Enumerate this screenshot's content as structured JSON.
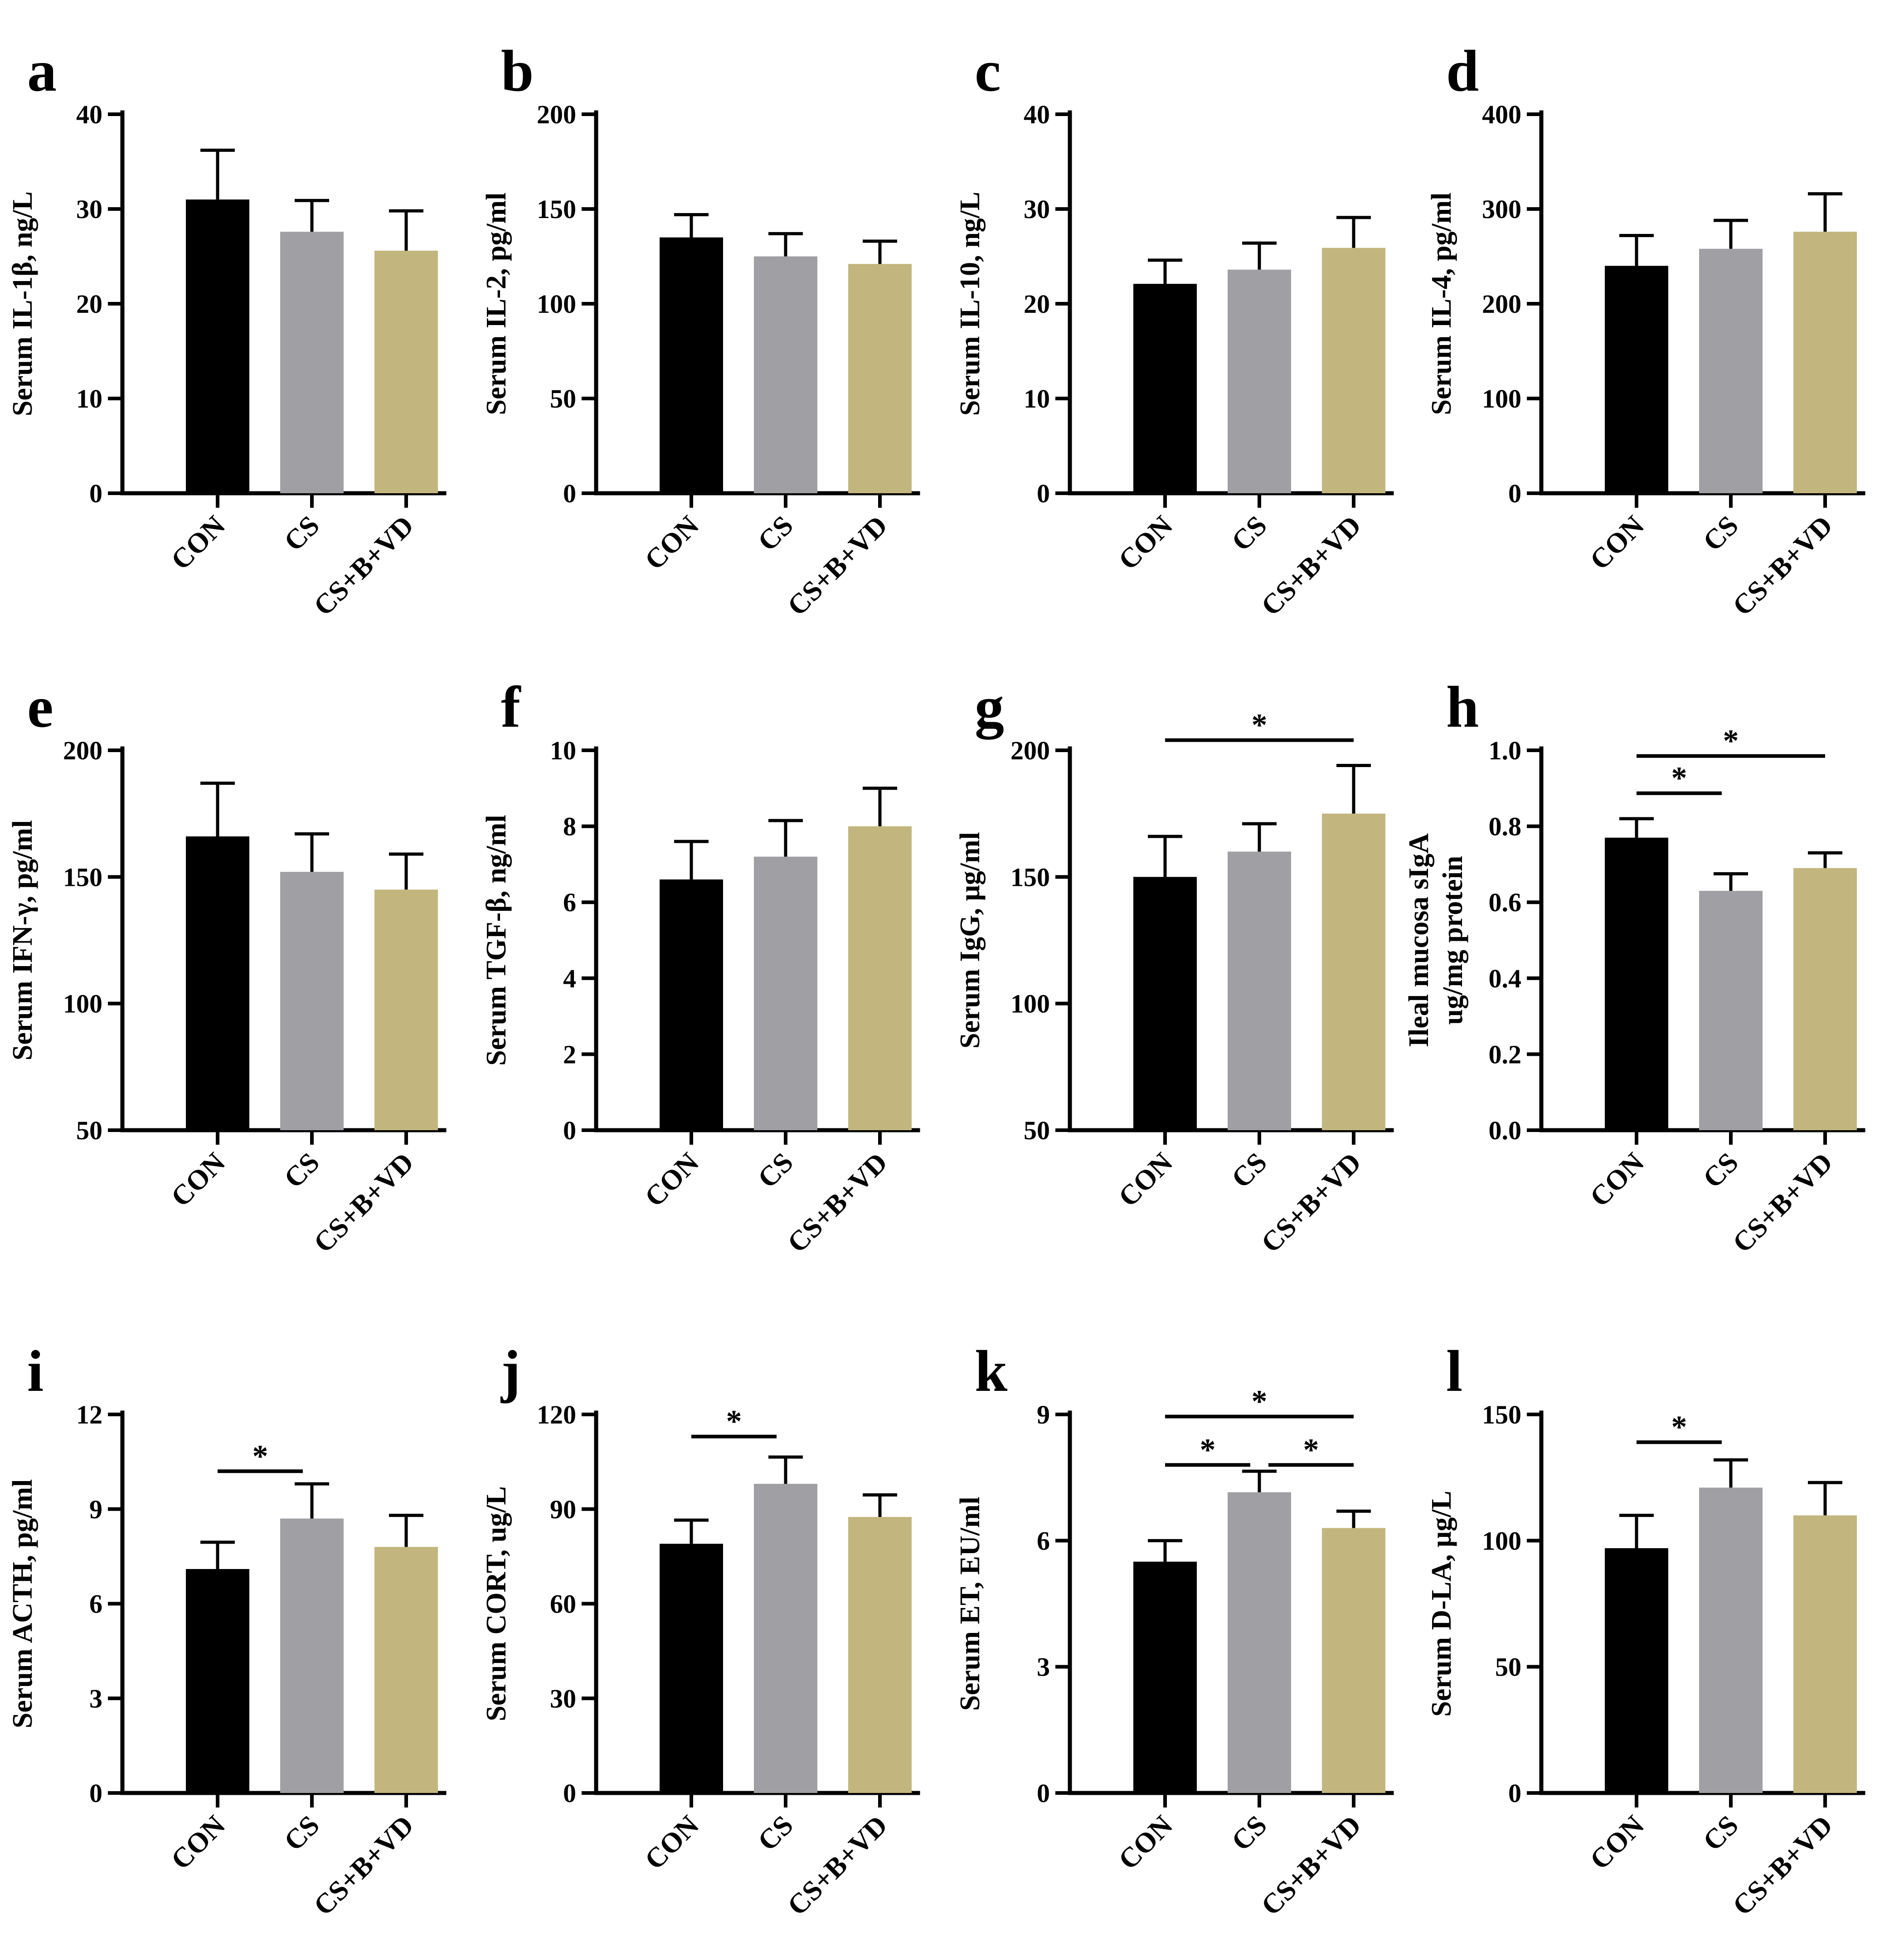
{
  "colors": {
    "CON": "#000000",
    "CS": "#a09fa4",
    "CS+B+VD": "#c2b67e"
  },
  "chart_data": [
    {
      "letter": "a",
      "type": "bar",
      "ylabel": "Serum IL-1β, ng/L",
      "ylabel2": "",
      "categories": [
        "CON",
        "CS",
        "CS+B+VD"
      ],
      "values": [
        31.0,
        27.6,
        25.6
      ],
      "errors": [
        5.2,
        3.3,
        4.2
      ],
      "ylim": [
        0,
        40
      ],
      "yticks": [
        "0",
        "10",
        "20",
        "30",
        "40"
      ],
      "sig": []
    },
    {
      "letter": "b",
      "type": "bar",
      "ylabel": "Serum IL-2, pg/ml",
      "ylabel2": "",
      "categories": [
        "CON",
        "CS",
        "CS+B+VD"
      ],
      "values": [
        135,
        125,
        121
      ],
      "errors": [
        12,
        12,
        12
      ],
      "ylim": [
        0,
        200
      ],
      "yticks": [
        "0",
        "50",
        "100",
        "150",
        "200"
      ],
      "sig": []
    },
    {
      "letter": "c",
      "type": "bar",
      "ylabel": "Serum IL-10, ng/L",
      "ylabel2": "",
      "categories": [
        "CON",
        "CS",
        "CS+B+VD"
      ],
      "values": [
        22.1,
        23.6,
        25.9
      ],
      "errors": [
        2.5,
        2.8,
        3.2
      ],
      "ylim": [
        0,
        40
      ],
      "yticks": [
        "0",
        "10",
        "20",
        "30",
        "40"
      ],
      "sig": []
    },
    {
      "letter": "d",
      "type": "bar",
      "ylabel": "Serum IL-4, pg/ml",
      "ylabel2": "",
      "categories": [
        "CON",
        "CS",
        "CS+B+VD"
      ],
      "values": [
        240,
        258,
        276
      ],
      "errors": [
        32,
        30,
        40
      ],
      "ylim": [
        0,
        400
      ],
      "yticks": [
        "0",
        "100",
        "200",
        "300",
        "400"
      ],
      "sig": []
    },
    {
      "letter": "e",
      "type": "bar",
      "ylabel": "Serum IFN-γ, pg/ml",
      "ylabel2": "",
      "categories": [
        "CON",
        "CS",
        "CS+B+VD"
      ],
      "values": [
        166,
        152,
        145
      ],
      "errors": [
        21,
        15,
        14
      ],
      "ylim": [
        50,
        200
      ],
      "yticks": [
        "50",
        "100",
        "150",
        "200"
      ],
      "sig": []
    },
    {
      "letter": "f",
      "type": "bar",
      "ylabel": "Serum TGF-β, ng/ml",
      "ylabel2": "",
      "categories": [
        "CON",
        "CS",
        "CS+B+VD"
      ],
      "values": [
        6.6,
        7.2,
        8.0
      ],
      "errors": [
        1.0,
        0.95,
        1.0
      ],
      "ylim": [
        0,
        10
      ],
      "yticks": [
        "0",
        "2",
        "4",
        "6",
        "8",
        "10"
      ],
      "sig": []
    },
    {
      "letter": "g",
      "type": "bar",
      "ylabel": "Serum IgG, μg/ml",
      "ylabel2": "",
      "categories": [
        "CON",
        "CS",
        "CS+B+VD"
      ],
      "values": [
        150,
        160,
        175
      ],
      "errors": [
        16,
        11,
        19
      ],
      "ylim": [
        50,
        200
      ],
      "yticks": [
        "50",
        "100",
        "150",
        "200"
      ],
      "sig": [
        {
          "from": 0,
          "to": 2,
          "y": 204,
          "label": "*"
        }
      ]
    },
    {
      "letter": "h",
      "type": "bar",
      "ylabel": "Ileal mucosa sIgA",
      "ylabel2": "ug/mg protein",
      "categories": [
        "CON",
        "CS",
        "CS+B+VD"
      ],
      "values": [
        0.77,
        0.63,
        0.69
      ],
      "errors": [
        0.05,
        0.045,
        0.04
      ],
      "ylim": [
        0,
        1.0
      ],
      "yticks": [
        "0.0",
        "0.2",
        "0.4",
        "0.6",
        "0.8",
        "1.0"
      ],
      "sig": [
        {
          "from": 0,
          "to": 1,
          "y": 0.887,
          "label": "*"
        },
        {
          "from": 0,
          "to": 2,
          "y": 0.985,
          "label": "*"
        }
      ]
    },
    {
      "letter": "i",
      "type": "bar",
      "ylabel": "Serum ACTH, pg/ml",
      "ylabel2": "",
      "categories": [
        "CON",
        "CS",
        "CS+B+VD"
      ],
      "values": [
        7.1,
        8.7,
        7.8
      ],
      "errors": [
        0.85,
        1.1,
        1.0
      ],
      "ylim": [
        0,
        12
      ],
      "yticks": [
        "0",
        "3",
        "6",
        "9",
        "12"
      ],
      "sig": [
        {
          "from": 0,
          "to": 1,
          "y": 10.2,
          "label": "*"
        }
      ]
    },
    {
      "letter": "j",
      "type": "bar",
      "ylabel": "Serum CORT, ug/L",
      "ylabel2": "",
      "categories": [
        "CON",
        "CS",
        "CS+B+VD"
      ],
      "values": [
        79,
        98,
        87.5
      ],
      "errors": [
        7.5,
        8.5,
        7
      ],
      "ylim": [
        0,
        120
      ],
      "yticks": [
        "0",
        "30",
        "60",
        "90",
        "120"
      ],
      "sig": [
        {
          "from": 0,
          "to": 1,
          "y": 113,
          "label": "*"
        }
      ]
    },
    {
      "letter": "k",
      "type": "bar",
      "ylabel": "Serum ET, EU/ml",
      "ylabel2": "",
      "categories": [
        "CON",
        "CS",
        "CS+B+VD"
      ],
      "values": [
        5.5,
        7.15,
        6.3
      ],
      "errors": [
        0.5,
        0.5,
        0.4
      ],
      "ylim": [
        0,
        9
      ],
      "yticks": [
        "0",
        "3",
        "6",
        "9"
      ],
      "sig": [
        {
          "from": 0,
          "to": 1,
          "y": 7.8,
          "label": "*"
        },
        {
          "from": 1,
          "to": 2,
          "y": 7.8,
          "label": "*"
        },
        {
          "from": 0,
          "to": 2,
          "y": 8.95,
          "label": "*"
        }
      ]
    },
    {
      "letter": "l",
      "type": "bar",
      "ylabel": "Serum D-LA, μg/L",
      "ylabel2": "",
      "categories": [
        "CON",
        "CS",
        "CS+B+VD"
      ],
      "values": [
        97,
        121,
        110
      ],
      "errors": [
        13,
        11,
        13
      ],
      "ylim": [
        0,
        150
      ],
      "yticks": [
        "0",
        "50",
        "100",
        "150"
      ],
      "sig": [
        {
          "from": 0,
          "to": 1,
          "y": 139,
          "label": "*"
        }
      ]
    }
  ]
}
